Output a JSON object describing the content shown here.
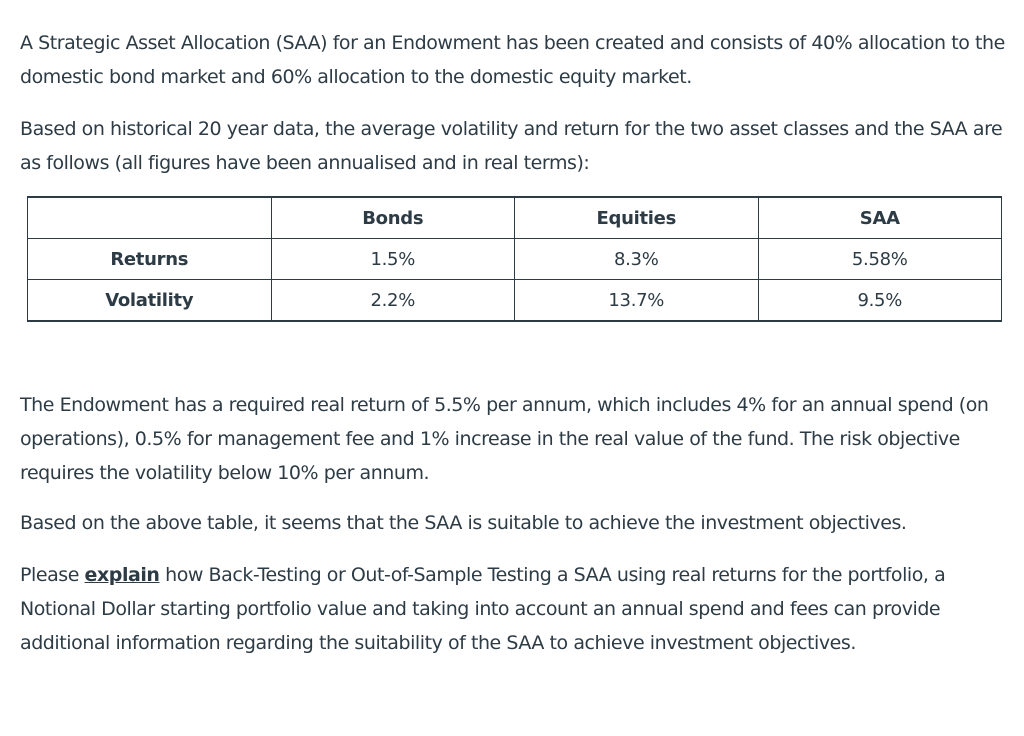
{
  "paragraphs": {
    "intro": "A Strategic Asset Allocation (SAA) for an Endowment has been created and consists of 40% allocation to the domestic bond market and 60% allocation to the domestic equity market.",
    "historical": "Based on historical 20 year data, the average volatility and return for the two asset classes and the SAA are as follows (all figures have been annualised and in real terms):",
    "requirement": "The Endowment has a required real return of 5.5% per annum, which includes 4% for an annual spend (on operations), 0.5% for management fee and 1% increase in the real value of the fund. The risk objective requires the volatility below 10% per annum.",
    "suitability": "Based on the above table, it seems that the SAA is suitable to achieve the investment objectives.",
    "question_before": "Please ",
    "question_emph": "explain",
    "question_after": " how Back-Testing or Out-of-Sample Testing a SAA  using real returns for the portfolio, a Notional Dollar starting portfolio value and taking into account an annual spend and fees can provide additional information regarding the  suitability  of the SAA to achieve investment objectives."
  },
  "table": {
    "headers": [
      "",
      "Bonds",
      "Equities",
      "SAA"
    ],
    "rows": [
      {
        "label": "Returns",
        "values": [
          "1.5%",
          "8.3%",
          "5.58%"
        ]
      },
      {
        "label": "Volatility",
        "values": [
          "2.2%",
          "13.7%",
          "9.5%"
        ]
      }
    ]
  }
}
